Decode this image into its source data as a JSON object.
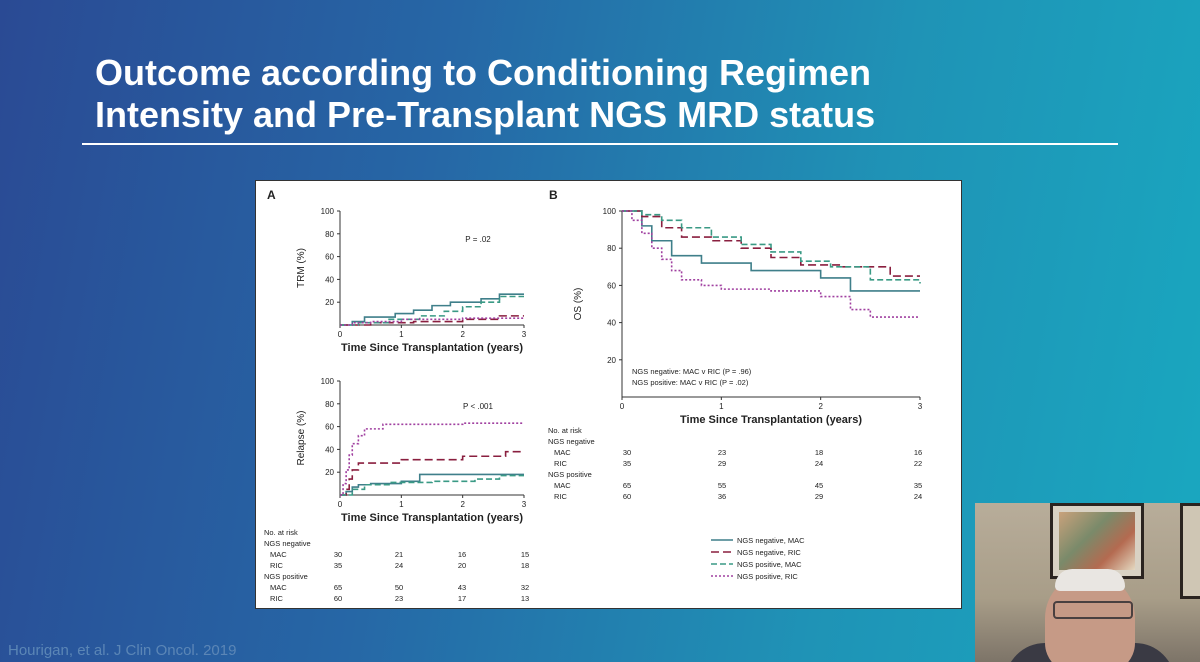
{
  "slide": {
    "title": "Outcome according to Conditioning Regimen\nIntensity and Pre-Transplant  NGS MRD status",
    "citation": "Hourigan, et al.  J Clin Oncol. 2019"
  },
  "colors": {
    "ngs_neg_mac": "#3f7f8a",
    "ngs_neg_ric": "#8a1f3f",
    "ngs_pos_mac": "#3a9a85",
    "ngs_pos_ric": "#a040a0"
  },
  "chart_data": [
    {
      "panel": "A",
      "type": "line",
      "ylabel": "TRM (%)",
      "xlabel": "Time Since Transplantation (years)",
      "xlim": [
        0,
        3
      ],
      "ylim": [
        0,
        100
      ],
      "xticks": [
        "0",
        "1",
        "2",
        "3"
      ],
      "yticks": [
        "20",
        "40",
        "60",
        "80",
        "100"
      ],
      "annotation": "P = .02",
      "series": [
        {
          "key": "ngs_neg_mac",
          "dash": "",
          "x": [
            0,
            0.2,
            0.4,
            0.9,
            1.2,
            1.5,
            1.8,
            2.3,
            2.6,
            3.0
          ],
          "y": [
            0,
            3,
            7,
            10,
            13,
            17,
            20,
            23,
            27,
            27
          ]
        },
        {
          "key": "ngs_neg_ric",
          "dash": "8,4",
          "x": [
            0,
            0.5,
            1.2,
            2.0,
            2.6,
            3.0
          ],
          "y": [
            0,
            2,
            3,
            5,
            8,
            8
          ]
        },
        {
          "key": "ngs_pos_mac",
          "dash": "6,3",
          "x": [
            0,
            0.3,
            0.8,
            1.3,
            1.7,
            2.0,
            2.3,
            2.6,
            3.0
          ],
          "y": [
            0,
            2,
            5,
            8,
            12,
            16,
            20,
            25,
            25
          ]
        },
        {
          "key": "ngs_pos_ric",
          "dash": "2,2",
          "x": [
            0,
            0.2,
            0.5,
            1.0,
            2.0,
            3.0
          ],
          "y": [
            0,
            2,
            3,
            5,
            6,
            6
          ]
        }
      ]
    },
    {
      "panel": "A2",
      "type": "line",
      "ylabel": "Relapse (%)",
      "xlabel": "Time Since Transplantation (years)",
      "xlim": [
        0,
        3
      ],
      "ylim": [
        0,
        100
      ],
      "xticks": [
        "0",
        "1",
        "2",
        "3"
      ],
      "yticks": [
        "20",
        "40",
        "60",
        "80",
        "100"
      ],
      "annotation": "P < .001",
      "series": [
        {
          "key": "ngs_neg_mac",
          "dash": "",
          "x": [
            0,
            0.1,
            0.2,
            0.3,
            0.5,
            1.0,
            1.3,
            3.0
          ],
          "y": [
            0,
            3,
            7,
            9,
            10,
            12,
            18,
            18
          ]
        },
        {
          "key": "ngs_neg_ric",
          "dash": "8,4",
          "x": [
            0,
            0.1,
            0.15,
            0.2,
            0.3,
            1.0,
            2.0,
            2.7,
            3.0
          ],
          "y": [
            0,
            5,
            14,
            22,
            28,
            31,
            34,
            38,
            38
          ]
        },
        {
          "key": "ngs_pos_mac",
          "dash": "6,3",
          "x": [
            0,
            0.2,
            0.4,
            0.8,
            1.5,
            2.2,
            2.6,
            3.0
          ],
          "y": [
            0,
            5,
            9,
            11,
            12,
            14,
            17,
            17
          ]
        },
        {
          "key": "ngs_pos_ric",
          "dash": "2,2",
          "x": [
            0,
            0.05,
            0.1,
            0.15,
            0.2,
            0.3,
            0.4,
            0.7,
            1.5,
            2.0,
            2.5,
            3.0
          ],
          "y": [
            0,
            10,
            22,
            35,
            45,
            52,
            58,
            62,
            62,
            63,
            63,
            63
          ]
        }
      ]
    },
    {
      "panel": "B",
      "type": "line",
      "ylabel": "OS (%)",
      "xlabel": "Time Since Transplantation (years)",
      "xlim": [
        0,
        3
      ],
      "ylim": [
        0,
        100
      ],
      "xticks": [
        "0",
        "1",
        "2",
        "3"
      ],
      "yticks": [
        "20",
        "40",
        "60",
        "80",
        "100"
      ],
      "notes": [
        "NGS negative: MAC v RIC (P = .96)",
        "NGS positive: MAC v RIC (P = .02)"
      ],
      "series": [
        {
          "key": "ngs_neg_mac",
          "dash": "",
          "x": [
            0,
            0.2,
            0.3,
            0.5,
            0.8,
            1.0,
            1.3,
            1.7,
            2.0,
            2.3,
            3.0
          ],
          "y": [
            100,
            92,
            84,
            76,
            72,
            72,
            68,
            68,
            64,
            57,
            57
          ]
        },
        {
          "key": "ngs_neg_ric",
          "dash": "8,4",
          "x": [
            0,
            0.2,
            0.4,
            0.6,
            0.9,
            1.2,
            1.5,
            1.8,
            2.2,
            2.7,
            3.0
          ],
          "y": [
            100,
            97,
            91,
            86,
            84,
            80,
            75,
            71,
            70,
            65,
            65
          ]
        },
        {
          "key": "ngs_pos_mac",
          "dash": "6,3",
          "x": [
            0,
            0.2,
            0.4,
            0.6,
            0.9,
            1.2,
            1.5,
            1.8,
            2.1,
            2.5,
            3.0
          ],
          "y": [
            100,
            98,
            95,
            91,
            86,
            82,
            78,
            73,
            70,
            63,
            61
          ]
        },
        {
          "key": "ngs_pos_ric",
          "dash": "2,2",
          "x": [
            0,
            0.1,
            0.2,
            0.3,
            0.4,
            0.5,
            0.6,
            0.8,
            1.0,
            1.5,
            2.0,
            2.3,
            2.5,
            3.0
          ],
          "y": [
            100,
            95,
            88,
            80,
            74,
            68,
            63,
            60,
            58,
            57,
            54,
            47,
            43,
            43
          ]
        }
      ]
    }
  ],
  "panel_labels": {
    "a": "A",
    "b": "B"
  },
  "risk_table_a": {
    "title": "No. at risk",
    "rows": [
      {
        "label": "NGS negative",
        "values": []
      },
      {
        "label": "MAC",
        "values": [
          "30",
          "21",
          "16",
          "15"
        ]
      },
      {
        "label": "RIC",
        "values": [
          "35",
          "24",
          "20",
          "18"
        ]
      },
      {
        "label": "NGS positive",
        "values": []
      },
      {
        "label": "MAC",
        "values": [
          "65",
          "50",
          "43",
          "32"
        ]
      },
      {
        "label": "RIC",
        "values": [
          "60",
          "23",
          "17",
          "13"
        ]
      }
    ]
  },
  "risk_table_b": {
    "title": "No. at risk",
    "rows": [
      {
        "label": "NGS negative",
        "values": []
      },
      {
        "label": "MAC",
        "values": [
          "30",
          "23",
          "18",
          "16"
        ]
      },
      {
        "label": "RIC",
        "values": [
          "35",
          "29",
          "24",
          "22"
        ]
      },
      {
        "label": "NGS positive",
        "values": []
      },
      {
        "label": "MAC",
        "values": [
          "65",
          "55",
          "45",
          "35"
        ]
      },
      {
        "label": "RIC",
        "values": [
          "60",
          "36",
          "29",
          "24"
        ]
      }
    ]
  },
  "legend": [
    {
      "key": "ngs_neg_mac",
      "label": "NGS negative, MAC",
      "dash": ""
    },
    {
      "key": "ngs_neg_ric",
      "label": "NGS negative, RIC",
      "dash": "8,4"
    },
    {
      "key": "ngs_pos_mac",
      "label": "NGS positive, MAC",
      "dash": "6,3"
    },
    {
      "key": "ngs_pos_ric",
      "label": "NGS positive, RIC",
      "dash": "2,2"
    }
  ]
}
